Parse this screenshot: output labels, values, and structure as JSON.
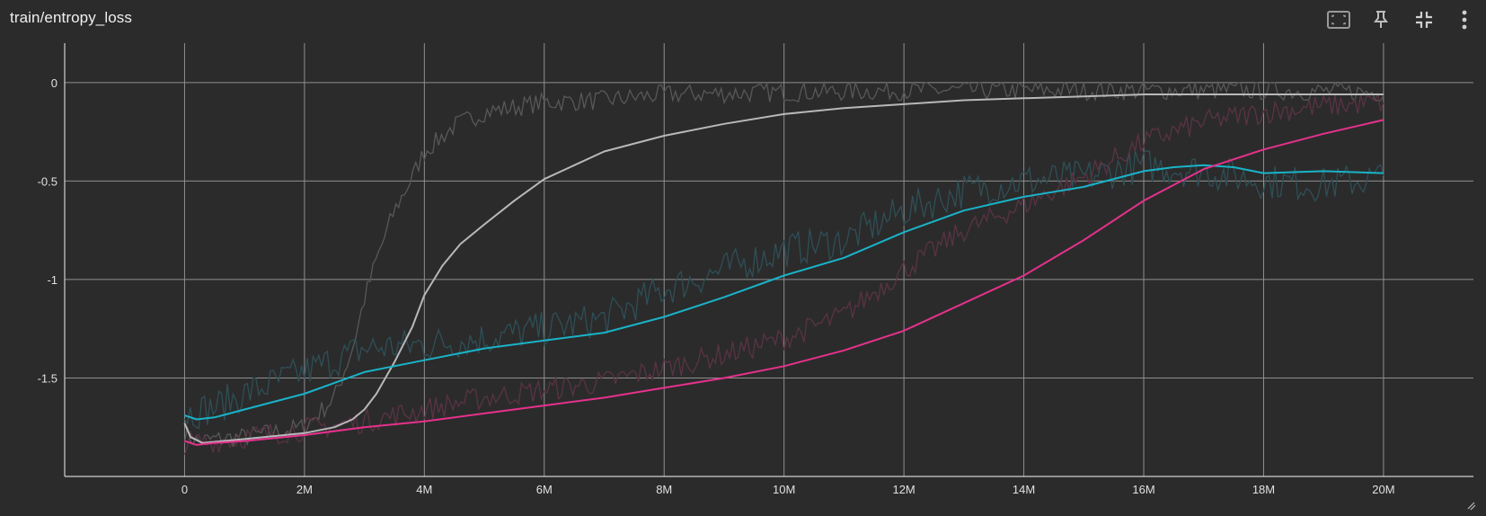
{
  "card": {
    "title": "train/entropy_loss"
  },
  "toolbar": {
    "buttons": [
      {
        "name": "fit-domain-button",
        "icon": "fit-to-data-icon"
      },
      {
        "name": "pin-button",
        "icon": "pin-icon"
      },
      {
        "name": "collapse-button",
        "icon": "collapse-icon"
      },
      {
        "name": "more-button",
        "icon": "more-vert-icon"
      }
    ]
  },
  "colors": {
    "background": "#2b2b2b",
    "grid": "#8f8f8f",
    "axis": "#d0d0d0",
    "gray_run": "#b8b8bc",
    "gray_raw": "#585858",
    "cyan_run": "#19b3c8",
    "cyan_raw": "#2e4f57",
    "pink_run": "#e6318c",
    "pink_raw": "#5a3344"
  },
  "chart_data": {
    "type": "line",
    "title": "train/entropy_loss",
    "xlabel": "",
    "ylabel": "",
    "xlim": [
      -2000000,
      21500000
    ],
    "ylim": [
      -2.0,
      0.2
    ],
    "x_ticks": [
      0,
      2000000,
      4000000,
      6000000,
      8000000,
      10000000,
      12000000,
      14000000,
      16000000,
      18000000,
      20000000
    ],
    "x_tick_labels": [
      "0",
      "2M",
      "4M",
      "6M",
      "8M",
      "10M",
      "12M",
      "14M",
      "16M",
      "18M",
      "20M"
    ],
    "y_ticks": [
      0,
      -0.5,
      -1,
      -1.5
    ],
    "y_tick_labels": [
      "0",
      "-0.5",
      "-1",
      "-1.5"
    ],
    "grid": true,
    "series": [
      {
        "color": "#b8b8bc",
        "raw_color": "#585858",
        "x": [
          0,
          100000,
          300000,
          1000000,
          2000000,
          2500000,
          2800000,
          3000000,
          3200000,
          3500000,
          3800000,
          4000000,
          4300000,
          4600000,
          5000000,
          5500000,
          6000000,
          7000000,
          8000000,
          9000000,
          10000000,
          11000000,
          12000000,
          13000000,
          14000000,
          15000000,
          16000000,
          17000000,
          18000000,
          19000000,
          20000000
        ],
        "values": [
          -1.73,
          -1.8,
          -1.83,
          -1.81,
          -1.78,
          -1.75,
          -1.71,
          -1.66,
          -1.58,
          -1.42,
          -1.24,
          -1.08,
          -0.93,
          -0.82,
          -0.72,
          -0.6,
          -0.49,
          -0.35,
          -0.27,
          -0.21,
          -0.16,
          -0.13,
          -0.11,
          -0.09,
          -0.08,
          -0.07,
          -0.06,
          -0.06,
          -0.06,
          -0.06,
          -0.06
        ],
        "raw_x": [
          0,
          200000,
          1000000,
          2000000,
          2500000,
          2800000,
          3000000,
          3200000,
          3500000,
          3800000,
          4000000,
          4200000,
          4500000,
          5000000,
          6000000,
          7000000,
          8000000,
          10000000,
          12000000,
          14000000,
          16000000,
          18000000,
          20000000
        ],
        "raw_values": [
          -1.78,
          -1.82,
          -1.8,
          -1.75,
          -1.6,
          -1.35,
          -1.1,
          -0.9,
          -0.65,
          -0.48,
          -0.35,
          -0.3,
          -0.22,
          -0.15,
          -0.1,
          -0.09,
          -0.06,
          -0.05,
          -0.04,
          -0.04,
          -0.04,
          -0.04,
          -0.05
        ],
        "raw_noise": 0.05
      },
      {
        "color": "#19b3c8",
        "raw_color": "#2e4f57",
        "x": [
          0,
          200000,
          500000,
          1000000,
          2000000,
          3000000,
          4000000,
          5000000,
          6000000,
          7000000,
          8000000,
          9000000,
          10000000,
          11000000,
          12000000,
          13000000,
          14000000,
          15000000,
          16000000,
          16500000,
          17000000,
          17500000,
          18000000,
          19000000,
          20000000
        ],
        "values": [
          -1.69,
          -1.71,
          -1.7,
          -1.66,
          -1.58,
          -1.47,
          -1.41,
          -1.35,
          -1.31,
          -1.27,
          -1.19,
          -1.09,
          -0.98,
          -0.89,
          -0.76,
          -0.65,
          -0.58,
          -0.53,
          -0.45,
          -0.43,
          -0.42,
          -0.43,
          -0.46,
          -0.45,
          -0.46
        ],
        "raw_x": [
          0,
          500000,
          1000000,
          2000000,
          3000000,
          4000000,
          5000000,
          6000000,
          7000000,
          8000000,
          9000000,
          10000000,
          11000000,
          12000000,
          13000000,
          14000000,
          15000000,
          16000000,
          17000000,
          18000000,
          19000000,
          20000000
        ],
        "raw_values": [
          -1.68,
          -1.65,
          -1.58,
          -1.47,
          -1.35,
          -1.33,
          -1.3,
          -1.25,
          -1.2,
          -1.05,
          -0.95,
          -0.85,
          -0.8,
          -0.65,
          -0.55,
          -0.5,
          -0.48,
          -0.42,
          -0.45,
          -0.5,
          -0.52,
          -0.48
        ],
        "raw_noise": 0.09
      },
      {
        "color": "#e6318c",
        "raw_color": "#5a3344",
        "x": [
          0,
          200000,
          500000,
          1000000,
          2000000,
          3000000,
          4000000,
          5000000,
          6000000,
          7000000,
          8000000,
          9000000,
          10000000,
          11000000,
          12000000,
          13000000,
          14000000,
          15000000,
          16000000,
          17000000,
          18000000,
          19000000,
          20000000
        ],
        "values": [
          -1.82,
          -1.84,
          -1.83,
          -1.82,
          -1.79,
          -1.75,
          -1.72,
          -1.68,
          -1.64,
          -1.6,
          -1.55,
          -1.5,
          -1.44,
          -1.36,
          -1.26,
          -1.12,
          -0.98,
          -0.8,
          -0.6,
          -0.44,
          -0.34,
          -0.26,
          -0.19
        ],
        "raw_x": [
          0,
          500000,
          1000000,
          2000000,
          3000000,
          4000000,
          5000000,
          6000000,
          7000000,
          8000000,
          9000000,
          10000000,
          11000000,
          12000000,
          13000000,
          14000000,
          15000000,
          16000000,
          17000000,
          18000000,
          19000000,
          20000000
        ],
        "raw_values": [
          -1.83,
          -1.82,
          -1.8,
          -1.76,
          -1.72,
          -1.66,
          -1.6,
          -1.56,
          -1.52,
          -1.45,
          -1.38,
          -1.3,
          -1.18,
          -0.95,
          -0.75,
          -0.62,
          -0.48,
          -0.3,
          -0.2,
          -0.15,
          -0.12,
          -0.1
        ],
        "raw_noise": 0.06
      }
    ]
  }
}
